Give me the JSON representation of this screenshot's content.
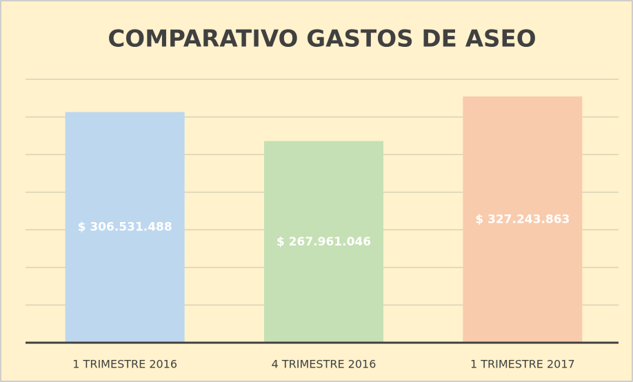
{
  "chart_data": {
    "type": "bar",
    "title": "COMPARATIVO GASTOS DE ASEO",
    "categories": [
      "1 TRIMESTRE 2016",
      "4 TRIMESTRE 2016",
      "1 TRIMESTRE 2017"
    ],
    "values": [
      306531488,
      267961046,
      327243863
    ],
    "value_labels": [
      "$ 306.531.488",
      "$ 267.961.046",
      "$ 327.243.863"
    ],
    "colors": [
      "#bdd7ee",
      "#c5e0b4",
      "#f8cbad"
    ],
    "ylim": [
      0,
      350000000
    ],
    "yticks": [
      0,
      50000000,
      100000000,
      150000000,
      200000000,
      250000000,
      300000000,
      350000000
    ],
    "grid": true
  }
}
